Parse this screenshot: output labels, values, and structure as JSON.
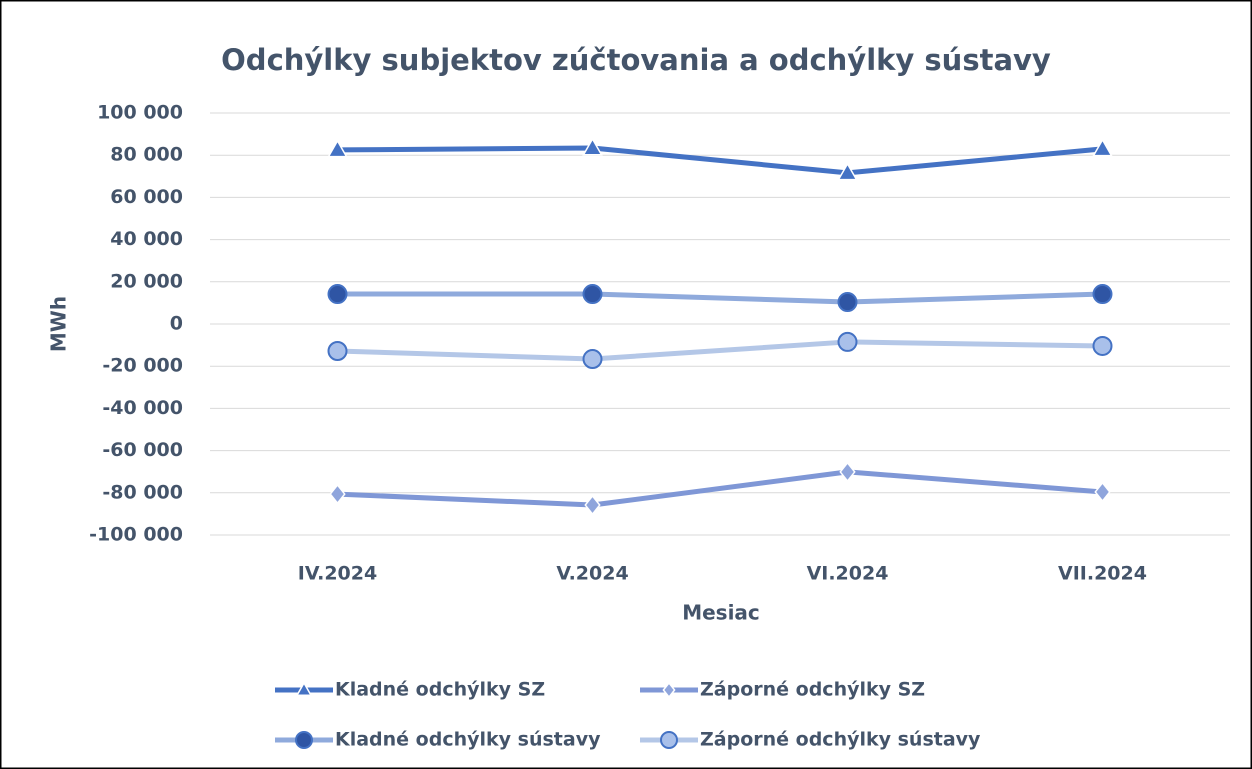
{
  "chart_data": {
    "type": "line",
    "title": "Odchýlky subjektov zúčtovania a odchýlky sústavy",
    "xlabel": "Mesiac",
    "ylabel": "MWh",
    "categories": [
      "IV.2024",
      "V.2024",
      "VI.2024",
      "VII.2024"
    ],
    "series": [
      {
        "name": "Kladné odchýlky SZ",
        "color": "#4472c4",
        "marker": "triangle",
        "marker_color": "#4472c4",
        "values": [
          82500,
          83400,
          71600,
          83000
        ]
      },
      {
        "name": "Záporné odchýlky SZ",
        "color": "#7f97d6",
        "marker": "diamond",
        "marker_color": "#8fa5dc",
        "values": [
          -80600,
          -85800,
          -70100,
          -79600
        ]
      },
      {
        "name": "Kladné odchýlky sústavy",
        "color": "#8faadc",
        "marker": "circle",
        "marker_color": "#2f55a4",
        "values": [
          14200,
          14200,
          10400,
          14200
        ]
      },
      {
        "name": "Záporné odchýlky sústavy",
        "color": "#b4c7e7",
        "marker": "circle",
        "marker_color": "#a9c0ea",
        "values": [
          -12800,
          -16600,
          -8500,
          -10400
        ]
      }
    ],
    "ylim": [
      -100000,
      100000
    ],
    "yticks": [
      {
        "value": -100000,
        "label": "-100 000"
      },
      {
        "value": -80000,
        "label": "-80 000"
      },
      {
        "value": -60000,
        "label": "-60 000"
      },
      {
        "value": -40000,
        "label": "-40 000"
      },
      {
        "value": -20000,
        "label": "-20 000"
      },
      0,
      {
        "value": 20000,
        "label": "20 000"
      },
      {
        "value": 40000,
        "label": "40 000"
      },
      {
        "value": 60000,
        "label": "60 000"
      },
      {
        "value": 80000,
        "label": "80 000"
      },
      {
        "value": 100000,
        "label": "100 000"
      }
    ],
    "grid": true,
    "legend": "bottom"
  }
}
